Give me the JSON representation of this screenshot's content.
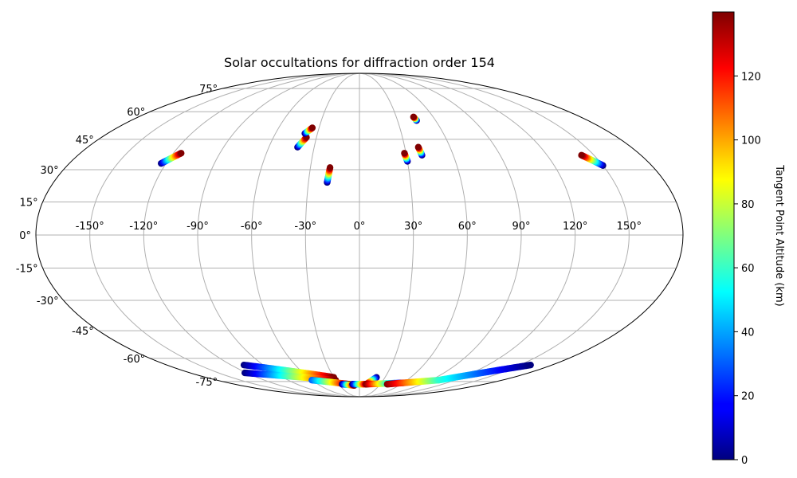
{
  "chart_data": {
    "type": "scatter",
    "title": "Solar occultations for diffraction order 154",
    "projection": "mollweide",
    "grid": true,
    "x_tick_labels": [
      "-150°",
      "-120°",
      "-90°",
      "-60°",
      "-30°",
      "0°",
      "30°",
      "60°",
      "90°",
      "120°",
      "150°"
    ],
    "x_tick_values": [
      -150,
      -120,
      -90,
      -60,
      -30,
      0,
      30,
      60,
      90,
      120,
      150
    ],
    "y_tick_labels": [
      "-75°",
      "-60°",
      "-45°",
      "-30°",
      "-15°",
      "0°",
      "15°",
      "30°",
      "45°",
      "60°",
      "75°"
    ],
    "y_tick_values": [
      -75,
      -60,
      -45,
      -30,
      -15,
      0,
      15,
      30,
      45,
      60,
      75
    ],
    "colorbar": {
      "label": "Tangent Point Altitude (km)",
      "colormap": "jet",
      "range": [
        0,
        140
      ],
      "tick_labels": [
        "0",
        "20",
        "40",
        "60",
        "80",
        "100",
        "120"
      ],
      "tick_values": [
        0,
        20,
        40,
        60,
        80,
        100,
        120
      ]
    },
    "tracks": [
      {
        "lon_start": -123,
        "lat_start": 33,
        "lon_end": -115,
        "lat_end": 38,
        "alt_start": 0,
        "alt_end": 140
      },
      {
        "lon_start": -41,
        "lat_start": 41,
        "lon_end": -37,
        "lat_end": 46,
        "alt_start": 0,
        "alt_end": 140
      },
      {
        "lon_start": -39,
        "lat_start": 48,
        "lon_end": -35,
        "lat_end": 51,
        "alt_start": 0,
        "alt_end": 140
      },
      {
        "lon_start": -19,
        "lat_start": 24,
        "lon_end": -18,
        "lat_end": 31,
        "alt_start": 0,
        "alt_end": 140
      },
      {
        "lon_start": 30,
        "lat_start": 34,
        "lon_end": 29,
        "lat_end": 38,
        "alt_start": 0,
        "alt_end": 140
      },
      {
        "lon_start": 40,
        "lat_start": 37,
        "lon_end": 39,
        "lat_end": 41,
        "alt_start": 0,
        "alt_end": 140
      },
      {
        "lon_start": 45,
        "lat_start": 55,
        "lon_end": 44,
        "lat_end": 57,
        "alt_start": 0,
        "alt_end": 140
      },
      {
        "lon_start": 150,
        "lat_start": 32,
        "lon_end": 142,
        "lat_end": 37,
        "alt_start": 0,
        "alt_end": 140
      },
      {
        "lon_start": -108,
        "lat_start": -64,
        "lon_end": -30,
        "lat_end": -72,
        "alt_start": 0,
        "alt_end": 140
      },
      {
        "lon_start": -122,
        "lat_start": -69,
        "lon_end": -30,
        "lat_end": -74,
        "alt_start": 0,
        "alt_end": 140
      },
      {
        "lon_start": -60,
        "lat_start": -74,
        "lon_end": -15,
        "lat_end": -77,
        "alt_start": 30,
        "alt_end": 140
      },
      {
        "lon_start": -25,
        "lat_start": -77,
        "lon_end": -8,
        "lat_end": -78,
        "alt_start": 0,
        "alt_end": 140
      },
      {
        "lon_start": -10,
        "lat_start": -77,
        "lon_end": 10,
        "lat_end": -77,
        "alt_start": 0,
        "alt_end": 140
      },
      {
        "lon_start": 20,
        "lat_start": -72,
        "lon_end": 10,
        "lat_end": -77,
        "alt_start": 0,
        "alt_end": 140
      },
      {
        "lon_start": 10,
        "lat_start": -77,
        "lon_end": 60,
        "lat_end": -76,
        "alt_start": 140,
        "alt_end": 0
      },
      {
        "lon_start": 40,
        "lat_start": -77,
        "lon_end": 100,
        "lat_end": -74,
        "alt_start": 140,
        "alt_end": 60
      },
      {
        "lon_start": 100,
        "lat_start": -74,
        "lon_end": 160,
        "lat_end": -64,
        "alt_start": 60,
        "alt_end": 0
      }
    ]
  }
}
